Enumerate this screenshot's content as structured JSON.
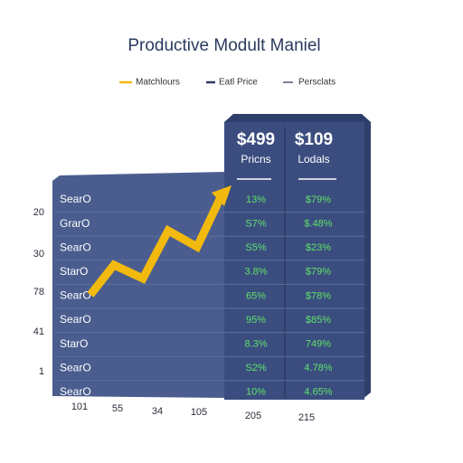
{
  "title": "Productive Modult Maniel",
  "legend": [
    "Matchlours",
    "Eatl Price",
    "Persclats"
  ],
  "headers": [
    {
      "value": "$499",
      "label": "Pricns"
    },
    {
      "value": "$109",
      "label": "Lodals"
    }
  ],
  "rows": [
    [
      "SearO",
      "13%",
      "$79%"
    ],
    [
      "GrarO",
      "S7%",
      "$.48%"
    ],
    [
      "SearO",
      "S5%",
      "$23%"
    ],
    [
      "StarO",
      "3.8%",
      "$79%"
    ],
    [
      "SearO",
      "65%",
      "$78%"
    ],
    [
      "SearO",
      "95%",
      "$85%"
    ],
    [
      "StarO",
      "8.3%",
      "749%"
    ],
    [
      "SearO",
      "S2%",
      "4.78%"
    ],
    [
      "SearO",
      "10%",
      "4.65%"
    ]
  ],
  "y_labels": [
    "20",
    "30",
    "78",
    "41",
    "1"
  ],
  "x_labels": [
    "101",
    "55",
    "34",
    "105",
    "205",
    "215"
  ]
}
